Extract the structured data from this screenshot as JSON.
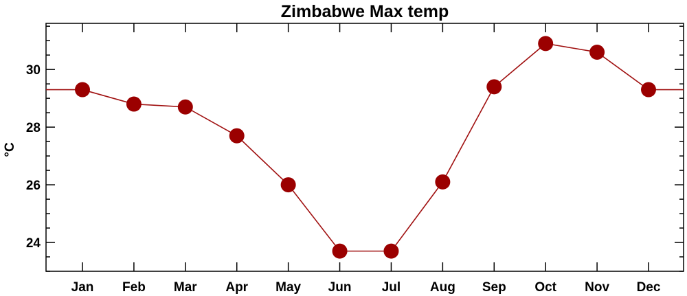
{
  "chart_data": {
    "type": "line",
    "title": "Zimbabwe Max temp",
    "xlabel": "",
    "ylabel": "°C",
    "categories": [
      "Jan",
      "Feb",
      "Mar",
      "Apr",
      "May",
      "Jun",
      "Jul",
      "Aug",
      "Sep",
      "Oct",
      "Nov",
      "Dec"
    ],
    "series": [
      {
        "values": [
          29.3,
          28.8,
          28.7,
          27.7,
          26.0,
          23.7,
          23.7,
          26.1,
          29.4,
          30.9,
          30.6,
          29.3
        ]
      }
    ],
    "ylim": [
      23.0,
      31.6
    ],
    "yticks": [
      24,
      26,
      28,
      30
    ],
    "ytick_labels": [
      "24",
      "26",
      "28",
      "30"
    ],
    "grid": false,
    "line_color": "#a01010",
    "marker_color": "#9b0000"
  }
}
